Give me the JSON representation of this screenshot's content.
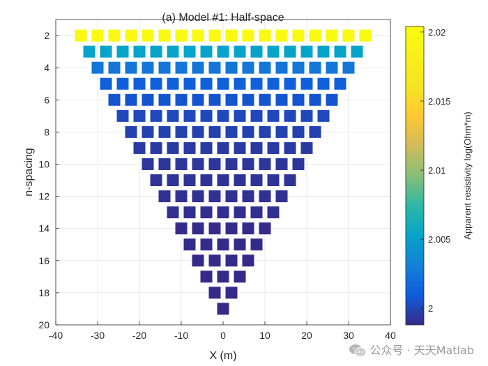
{
  "chart_data": {
    "type": "scatter",
    "title": "(a) Model #1: Half-space",
    "xlabel": "X (m)",
    "ylabel": "n-spacing",
    "xlim": [
      -40,
      40
    ],
    "ylim": [
      20,
      1
    ],
    "y_reversed": true,
    "grid": true,
    "xticks": [
      -40,
      -30,
      -20,
      -10,
      0,
      10,
      20,
      30,
      40
    ],
    "yticks": [
      2,
      4,
      6,
      8,
      10,
      12,
      14,
      16,
      18,
      20
    ],
    "marker": "square",
    "x_spacing": 4,
    "n_min": 2,
    "n_max": 19,
    "x_half_extent_n2": 34,
    "values_by_n": [
      {
        "n": 2,
        "value": 2.0202
      },
      {
        "n": 3,
        "value": 2.0053
      },
      {
        "n": 4,
        "value": 2.0025
      },
      {
        "n": 5,
        "value": 2.0012
      },
      {
        "n": 6,
        "value": 2.0006
      },
      {
        "n": 7,
        "value": 2.0001
      },
      {
        "n": 8,
        "value": 1.9998
      },
      {
        "n": 9,
        "value": 1.9995
      },
      {
        "n": 10,
        "value": 1.9993
      },
      {
        "n": 11,
        "value": 1.9992
      },
      {
        "n": 12,
        "value": 1.9991
      },
      {
        "n": 13,
        "value": 1.999
      },
      {
        "n": 14,
        "value": 1.9989
      },
      {
        "n": 15,
        "value": 1.9989
      },
      {
        "n": 16,
        "value": 1.9988
      },
      {
        "n": 17,
        "value": 1.9988
      },
      {
        "n": 18,
        "value": 1.9988
      },
      {
        "n": 19,
        "value": 1.9988
      }
    ],
    "colorbar": {
      "label": "Apparent resistivity log(Ohm*m)",
      "colormap": "parula",
      "clim": [
        1.9988,
        2.0204
      ],
      "ticks": [
        2,
        2.005,
        2.01,
        2.015,
        2.02
      ],
      "tick_labels": [
        "2",
        "2.005",
        "2.01",
        "2.015",
        "2.02"
      ]
    }
  },
  "watermark": {
    "text": "公众号 · 天天Matlab",
    "icon": "wechat-icon"
  }
}
